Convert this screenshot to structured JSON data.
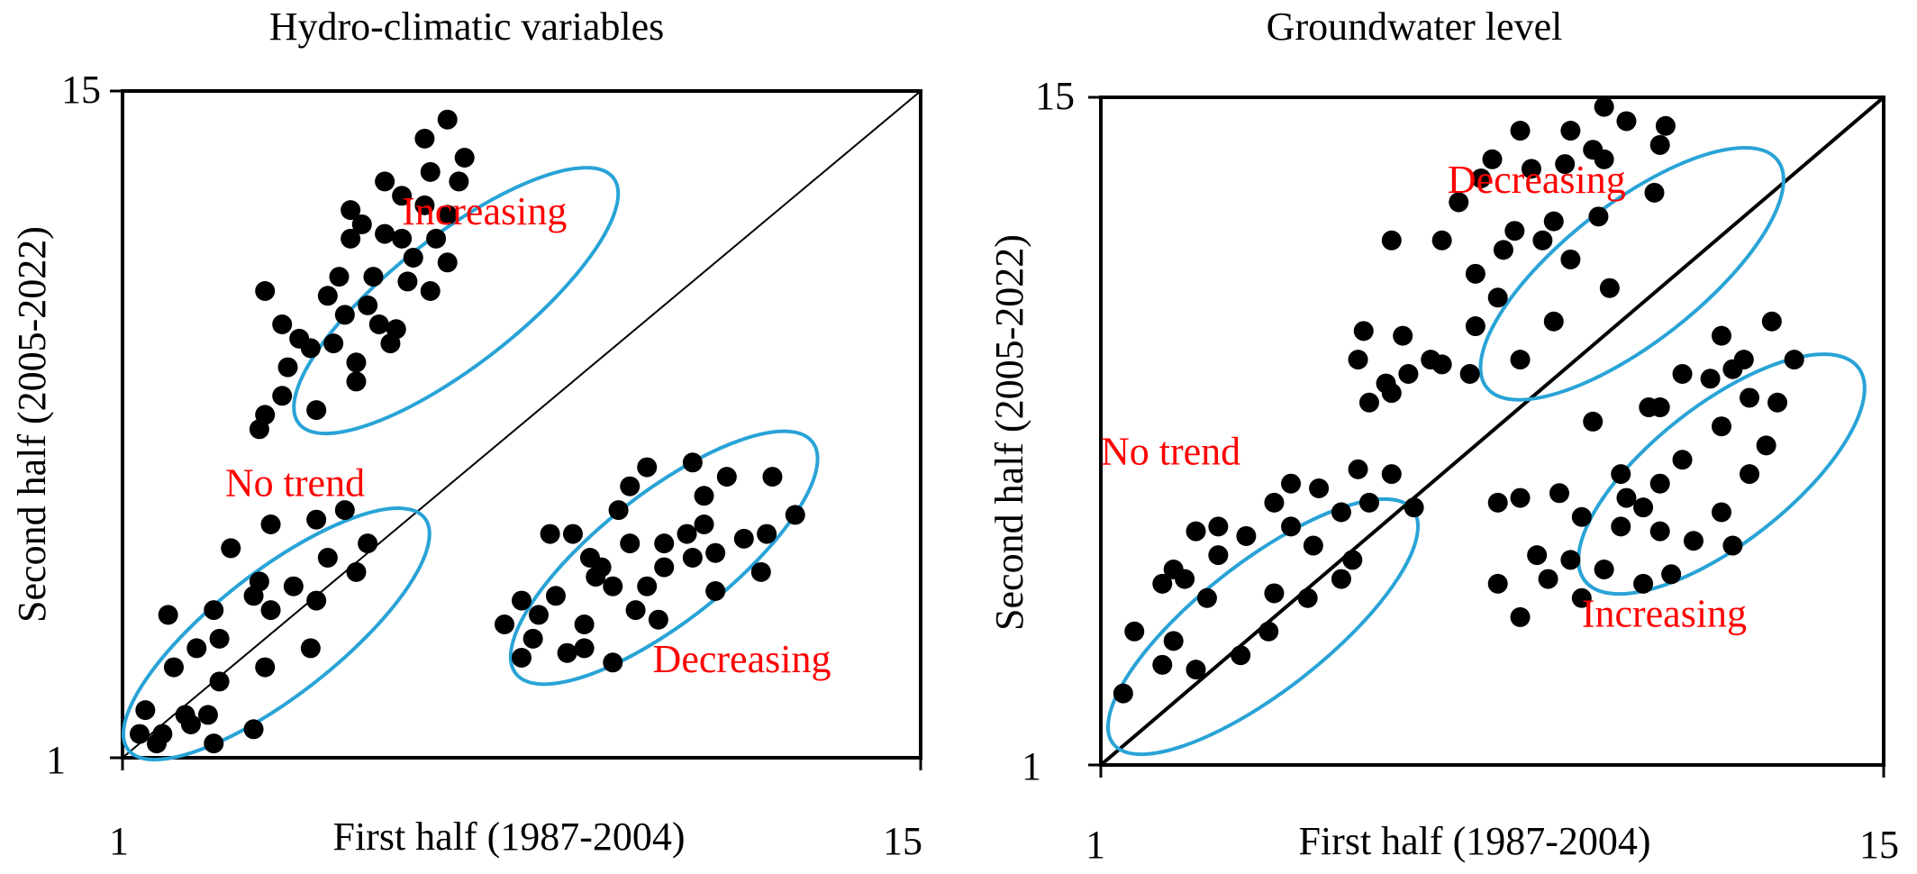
{
  "chart_data": [
    {
      "type": "scatter",
      "title": "Hydro-climatic variables",
      "xlabel": "First half (1987-2004)",
      "ylabel": "Second half (2005-2022)",
      "xlim": [
        1,
        15
      ],
      "ylim": [
        1,
        15
      ],
      "x_ticks": [
        "1",
        "15"
      ],
      "y_ticks": [
        "1",
        "15"
      ],
      "diagonal": true,
      "colors": {
        "points": "#000000",
        "ellipse": "#29a3d6",
        "labels": "#ff0000"
      },
      "groups": [
        {
          "name": "Increasing",
          "ellipse": {
            "cx": 6.85,
            "cy": 10.6,
            "rx": 3.5,
            "ry": 1.35,
            "angle": 38
          },
          "label_pos": [
            5.9,
            12.2
          ],
          "points": [
            [
              6.7,
              14.4
            ],
            [
              6.3,
              14.0
            ],
            [
              7.0,
              13.6
            ],
            [
              6.4,
              13.3
            ],
            [
              6.9,
              13.1
            ],
            [
              5.6,
              13.1
            ],
            [
              5.9,
              12.8
            ],
            [
              6.3,
              12.6
            ],
            [
              5.0,
              12.5
            ],
            [
              6.7,
              12.4
            ],
            [
              5.2,
              12.2
            ],
            [
              5.6,
              12.0
            ],
            [
              5.9,
              11.9
            ],
            [
              6.5,
              11.9
            ],
            [
              5.0,
              11.9
            ],
            [
              6.1,
              11.5
            ],
            [
              6.7,
              11.4
            ],
            [
              4.8,
              11.1
            ],
            [
              5.4,
              11.1
            ],
            [
              6.0,
              11.0
            ],
            [
              6.4,
              10.8
            ],
            [
              4.6,
              10.7
            ],
            [
              5.3,
              10.5
            ],
            [
              4.9,
              10.3
            ],
            [
              5.5,
              10.1
            ],
            [
              5.8,
              10.0
            ],
            [
              4.7,
              9.7
            ],
            [
              5.7,
              9.7
            ],
            [
              5.1,
              9.3
            ],
            [
              4.3,
              9.6
            ],
            [
              3.5,
              10.8
            ],
            [
              3.8,
              10.1
            ],
            [
              4.1,
              9.8
            ],
            [
              3.9,
              9.2
            ],
            [
              3.8,
              8.6
            ],
            [
              3.5,
              8.2
            ],
            [
              3.4,
              7.9
            ],
            [
              4.4,
              8.3
            ],
            [
              5.1,
              8.9
            ]
          ],
          "points_note": ""
        },
        {
          "name": "No trend",
          "ellipse": {
            "cx": 3.7,
            "cy": 3.6,
            "rx": 3.3,
            "ry": 1.3,
            "angle": 38
          },
          "label_pos": [
            2.8,
            6.5
          ],
          "points": [
            [
              4.9,
              6.2
            ],
            [
              4.4,
              6.0
            ],
            [
              3.6,
              5.9
            ],
            [
              2.9,
              5.4
            ],
            [
              5.3,
              5.5
            ],
            [
              4.6,
              5.2
            ],
            [
              5.1,
              4.9
            ],
            [
              3.4,
              4.7
            ],
            [
              4.0,
              4.6
            ],
            [
              3.3,
              4.4
            ],
            [
              4.4,
              4.3
            ],
            [
              1.8,
              4.0
            ],
            [
              3.6,
              4.1
            ],
            [
              2.6,
              4.1
            ],
            [
              4.3,
              3.3
            ],
            [
              2.7,
              3.5
            ],
            [
              2.3,
              3.3
            ],
            [
              3.5,
              2.9
            ],
            [
              1.9,
              2.9
            ],
            [
              2.7,
              2.6
            ],
            [
              2.5,
              1.9
            ],
            [
              2.2,
              1.7
            ],
            [
              3.3,
              1.6
            ],
            [
              1.7,
              1.5
            ],
            [
              1.4,
              2.0
            ],
            [
              2.1,
              1.9
            ],
            [
              2.6,
              1.3
            ],
            [
              1.6,
              1.3
            ],
            [
              1.3,
              1.5
            ]
          ],
          "points_note": ""
        },
        {
          "name": "Decreasing",
          "ellipse": {
            "cx": 10.5,
            "cy": 5.2,
            "rx": 3.3,
            "ry": 1.35,
            "angle": 38
          },
          "label_pos": [
            10.3,
            2.8
          ],
          "points": [
            [
              10.2,
              7.1
            ],
            [
              11.0,
              7.2
            ],
            [
              11.6,
              6.9
            ],
            [
              9.9,
              6.7
            ],
            [
              11.2,
              6.5
            ],
            [
              12.4,
              6.9
            ],
            [
              12.8,
              6.1
            ],
            [
              11.2,
              5.9
            ],
            [
              12.3,
              5.7
            ],
            [
              8.9,
              5.7
            ],
            [
              9.7,
              6.2
            ],
            [
              9.9,
              5.5
            ],
            [
              10.5,
              5.5
            ],
            [
              10.9,
              5.7
            ],
            [
              8.5,
              5.7
            ],
            [
              9.2,
              5.2
            ],
            [
              10.5,
              5.0
            ],
            [
              11.0,
              5.2
            ],
            [
              11.4,
              5.3
            ],
            [
              10.2,
              4.6
            ],
            [
              9.6,
              4.6
            ],
            [
              11.4,
              4.5
            ],
            [
              10.0,
              4.1
            ],
            [
              9.3,
              4.8
            ],
            [
              8.6,
              4.4
            ],
            [
              8.0,
              4.3
            ],
            [
              8.3,
              4.0
            ],
            [
              7.7,
              3.8
            ],
            [
              8.2,
              3.5
            ],
            [
              9.1,
              3.8
            ],
            [
              9.1,
              3.3
            ],
            [
              9.6,
              3.0
            ],
            [
              8.8,
              3.2
            ],
            [
              10.4,
              3.9
            ],
            [
              12.2,
              4.9
            ],
            [
              11.9,
              5.6
            ],
            [
              9.4,
              5.0
            ],
            [
              8.0,
              3.1
            ]
          ],
          "points_note": ""
        }
      ]
    },
    {
      "type": "scatter",
      "title": "Groundwater level",
      "xlabel": "First half (1987-2004)",
      "ylabel": "Second half (2005-2022)",
      "xlim": [
        1,
        15
      ],
      "ylim": [
        1,
        15
      ],
      "x_ticks": [
        "1",
        "15"
      ],
      "y_ticks": [
        "1",
        "15"
      ],
      "diagonal": true,
      "colors": {
        "points": "#000000",
        "ellipse": "#29a3d6",
        "labels": "#ff0000"
      },
      "groups": [
        {
          "name": "Decreasing",
          "ellipse": {
            "cx": 10.5,
            "cy": 11.3,
            "rx": 3.3,
            "ry": 1.45,
            "angle": 38
          },
          "label_pos": [
            7.2,
            13.0
          ],
          "points": [
            [
              10.0,
              14.8
            ],
            [
              10.4,
              14.5
            ],
            [
              9.4,
              14.3
            ],
            [
              8.5,
              14.3
            ],
            [
              11.1,
              14.4
            ],
            [
              11.0,
              14.0
            ],
            [
              9.8,
              13.9
            ],
            [
              10.0,
              13.7
            ],
            [
              8.0,
              13.7
            ],
            [
              9.3,
              13.6
            ],
            [
              10.9,
              13.0
            ],
            [
              8.7,
              13.5
            ],
            [
              7.8,
              13.3
            ],
            [
              7.4,
              12.8
            ],
            [
              9.1,
              12.4
            ],
            [
              9.9,
              12.5
            ],
            [
              6.2,
              12.0
            ],
            [
              8.4,
              12.2
            ],
            [
              8.9,
              12.0
            ],
            [
              7.1,
              12.0
            ],
            [
              8.2,
              11.8
            ],
            [
              7.7,
              11.3
            ],
            [
              9.4,
              11.6
            ],
            [
              10.1,
              11.0
            ],
            [
              8.1,
              10.8
            ],
            [
              5.7,
              10.1
            ],
            [
              7.7,
              10.2
            ],
            [
              9.1,
              10.3
            ],
            [
              6.4,
              10.0
            ],
            [
              8.5,
              9.5
            ],
            [
              6.9,
              9.5
            ],
            [
              7.1,
              9.4
            ],
            [
              6.1,
              9.0
            ],
            [
              5.6,
              9.5
            ],
            [
              7.6,
              9.2
            ],
            [
              5.8,
              8.6
            ],
            [
              6.2,
              8.8
            ],
            [
              6.5,
              9.2
            ]
          ],
          "points_note": ""
        },
        {
          "name": "No trend",
          "ellipse": {
            "cx": 3.9,
            "cy": 3.9,
            "rx": 3.4,
            "ry": 1.35,
            "angle": 38
          },
          "label_pos": [
            1.0,
            7.3
          ],
          "points": [
            [
              5.6,
              7.2
            ],
            [
              6.2,
              7.1
            ],
            [
              4.4,
              6.9
            ],
            [
              4.9,
              6.8
            ],
            [
              5.8,
              6.5
            ],
            [
              4.1,
              6.5
            ],
            [
              6.6,
              6.4
            ],
            [
              5.3,
              6.3
            ],
            [
              4.4,
              6.0
            ],
            [
              3.1,
              6.0
            ],
            [
              2.7,
              5.9
            ],
            [
              3.6,
              5.8
            ],
            [
              4.8,
              5.6
            ],
            [
              5.5,
              5.3
            ],
            [
              2.3,
              5.1
            ],
            [
              3.1,
              5.4
            ],
            [
              2.5,
              4.9
            ],
            [
              5.3,
              4.9
            ],
            [
              2.1,
              4.8
            ],
            [
              4.1,
              4.6
            ],
            [
              2.9,
              4.5
            ],
            [
              4.7,
              4.5
            ],
            [
              1.6,
              3.8
            ],
            [
              4.0,
              3.8
            ],
            [
              2.3,
              3.6
            ],
            [
              3.5,
              3.3
            ],
            [
              2.1,
              3.1
            ],
            [
              2.7,
              3.0
            ],
            [
              1.4,
              2.5
            ]
          ],
          "points_note": ""
        },
        {
          "name": "Increasing",
          "ellipse": {
            "cx": 12.1,
            "cy": 7.1,
            "rx": 3.1,
            "ry": 1.45,
            "angle": 38
          },
          "label_pos": [
            9.6,
            3.9
          ],
          "points": [
            [
              12.1,
              10.0
            ],
            [
              13.0,
              10.3
            ],
            [
              11.4,
              9.2
            ],
            [
              12.5,
              9.5
            ],
            [
              13.4,
              9.5
            ],
            [
              11.9,
              9.1
            ],
            [
              12.3,
              9.3
            ],
            [
              11.0,
              8.5
            ],
            [
              12.6,
              8.7
            ],
            [
              13.1,
              8.6
            ],
            [
              9.8,
              8.2
            ],
            [
              10.8,
              8.5
            ],
            [
              12.1,
              8.1
            ],
            [
              12.9,
              7.7
            ],
            [
              11.4,
              7.4
            ],
            [
              12.6,
              7.1
            ],
            [
              10.3,
              7.1
            ],
            [
              11.0,
              6.9
            ],
            [
              10.4,
              6.6
            ],
            [
              10.7,
              6.4
            ],
            [
              8.1,
              6.5
            ],
            [
              8.5,
              6.6
            ],
            [
              9.2,
              6.7
            ],
            [
              9.6,
              6.2
            ],
            [
              10.3,
              6.0
            ],
            [
              11.0,
              5.9
            ],
            [
              11.6,
              5.7
            ],
            [
              12.3,
              5.6
            ],
            [
              8.8,
              5.4
            ],
            [
              9.4,
              5.3
            ],
            [
              10.0,
              5.1
            ],
            [
              10.7,
              4.8
            ],
            [
              8.1,
              4.8
            ],
            [
              9.0,
              4.9
            ],
            [
              8.5,
              4.1
            ],
            [
              9.6,
              4.5
            ],
            [
              11.2,
              5.0
            ],
            [
              12.1,
              6.3
            ]
          ],
          "points_note": ""
        }
      ]
    }
  ]
}
